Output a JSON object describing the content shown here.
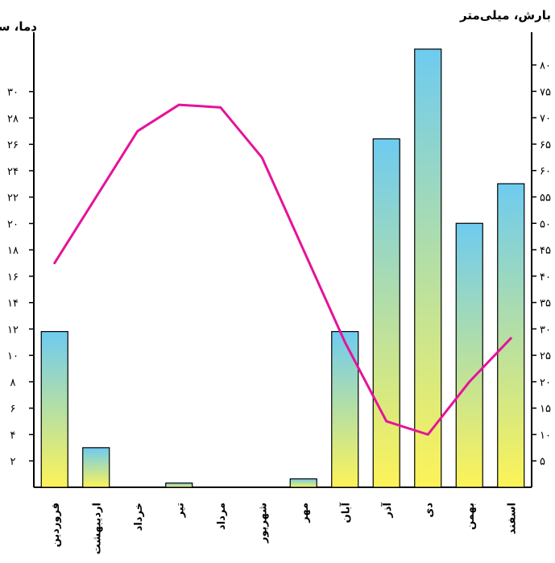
{
  "chart_data": {
    "type": "bar",
    "left_axis": {
      "title": "دما، سانتی‌گراد",
      "ticks": [
        2,
        4,
        6,
        8,
        10,
        12,
        14,
        16,
        18,
        20,
        22,
        24,
        26,
        28,
        30
      ],
      "tick_labels": [
        "۲",
        "۴",
        "۶",
        "۸",
        "۱۰",
        "۱۲",
        "۱۴",
        "۱۶",
        "۱۸",
        "۲۰",
        "۲۲",
        "۲۴",
        "۲۶",
        "۲۸",
        "۳۰"
      ],
      "range": [
        0,
        34.5
      ]
    },
    "right_axis": {
      "title": "بارش، میلی‌متر",
      "ticks": [
        5,
        10,
        15,
        20,
        25,
        30,
        35,
        40,
        45,
        50,
        55,
        60,
        65,
        70,
        75,
        80
      ],
      "tick_labels": [
        "۵",
        "۱۰",
        "۱۵",
        "۲۰",
        "۲۵",
        "۳۰",
        "۳۵",
        "۴۰",
        "۴۵",
        "۵۰",
        "۵۵",
        "۶۰",
        "۶۵",
        "۷۰",
        "۷۵",
        "۸۰"
      ],
      "range": [
        0,
        86.2
      ]
    },
    "categories": [
      "فروردین",
      "اردیبهشت",
      "خرداد",
      "تیر",
      "مرداد",
      "شهریور",
      "مهر",
      "آبان",
      "آذر",
      "دی",
      "بهمن",
      "اسفند"
    ],
    "series": [
      {
        "kind": "bar",
        "axis": "right",
        "values": [
          29.5,
          7.5,
          0,
          0.8,
          0,
          0,
          1.6,
          29.5,
          66,
          83,
          50,
          57.5
        ]
      },
      {
        "kind": "line",
        "axis": "left",
        "values": [
          17,
          22,
          27,
          29,
          28.8,
          25,
          18,
          11,
          5,
          4,
          8,
          11.3
        ]
      }
    ],
    "colors": {
      "bar_top": "#6ecbf0",
      "bar_bottom": "#fdf358",
      "bar_stroke": "#000000",
      "line": "#e5139a",
      "axis": "#000000"
    },
    "grid": false
  }
}
